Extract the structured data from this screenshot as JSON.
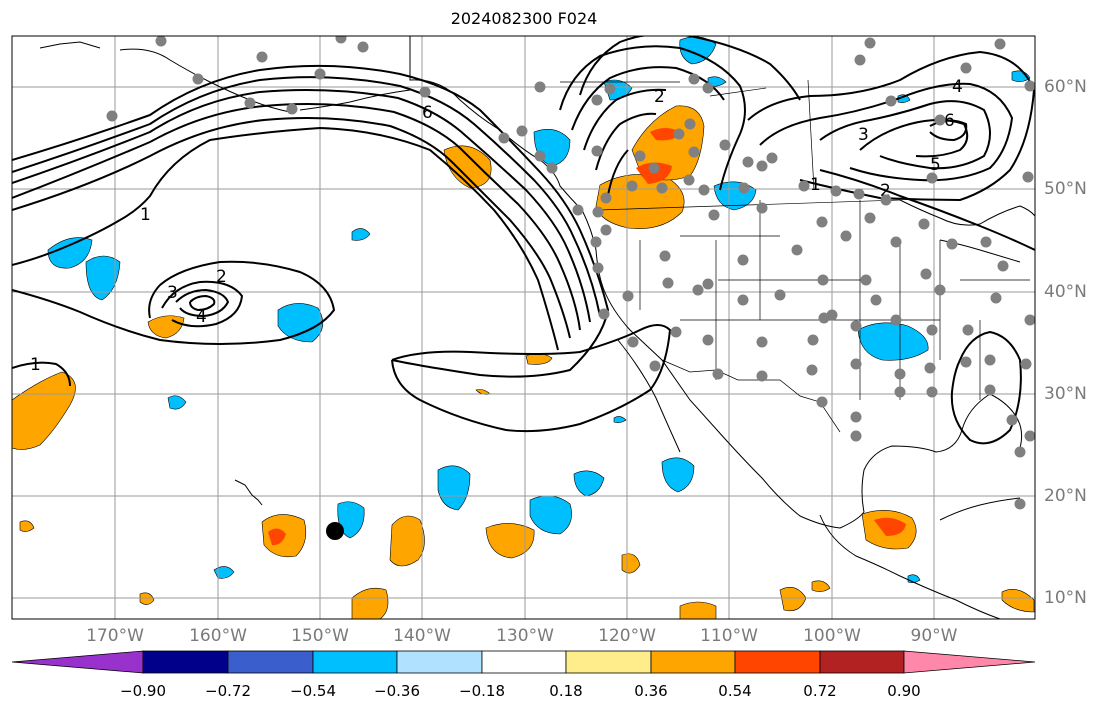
{
  "title": "2024082300 F024",
  "map": {
    "lon_range": [
      -180,
      -80
    ],
    "lat_range": [
      8,
      65
    ],
    "lon_ticks": [
      "170°W",
      "160°W",
      "150°W",
      "140°W",
      "130°W",
      "120°W",
      "110°W",
      "100°W",
      "90°W"
    ],
    "lat_ticks": [
      "10°N",
      "20°N",
      "30°N",
      "40°N",
      "50°N",
      "60°N"
    ],
    "contour_labels": [
      "1",
      "2",
      "3",
      "4",
      "6",
      "2",
      "1",
      "2",
      "3",
      "4",
      "5",
      "6",
      "1"
    ],
    "contour_color": "#000000",
    "station_color": "#808080"
  },
  "colorbar": {
    "tick_labels": [
      "−0.90",
      "−0.72",
      "−0.54",
      "−0.36",
      "−0.18",
      "0.18",
      "0.36",
      "0.54",
      "0.72",
      "0.90"
    ],
    "colors": [
      "#9932CC",
      "#00008B",
      "#3A5FCD",
      "#00BFFF",
      "#B0E2FF",
      "#FFFFFF",
      "#FFEC8B",
      "#FFA500",
      "#FF4500",
      "#B22222",
      "#FF88AA"
    ]
  }
}
